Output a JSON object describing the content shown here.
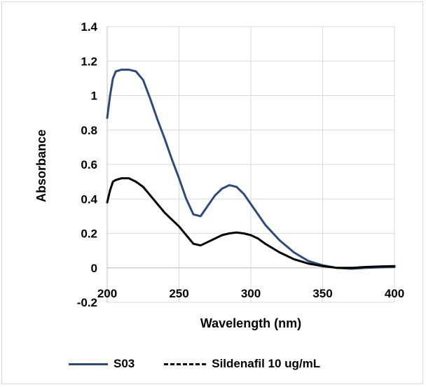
{
  "chart_data": {
    "type": "line",
    "xlabel": "Wavelength (nm)",
    "ylabel": "Absorbance",
    "xlim": [
      200,
      400
    ],
    "ylim": [
      -0.2,
      1.4
    ],
    "x_ticks": [
      "200",
      "250",
      "300",
      "350",
      "400"
    ],
    "y_ticks": [
      "-0.2",
      "0",
      "0.2",
      "0.4",
      "0.6",
      "0.8",
      "1",
      "1.2",
      "1.4"
    ],
    "grid": true,
    "legend_position": "bottom",
    "series": [
      {
        "name": "S03",
        "color": "#2e4a78",
        "style": "solid",
        "x": [
          200,
          202,
          204,
          206,
          210,
          215,
          220,
          225,
          230,
          235,
          240,
          245,
          250,
          255,
          260,
          265,
          270,
          275,
          280,
          285,
          290,
          295,
          300,
          305,
          310,
          320,
          330,
          340,
          350,
          360,
          370,
          380,
          390,
          400
        ],
        "y": [
          0.87,
          1.0,
          1.1,
          1.14,
          1.15,
          1.15,
          1.14,
          1.09,
          0.98,
          0.86,
          0.75,
          0.63,
          0.52,
          0.4,
          0.31,
          0.3,
          0.36,
          0.42,
          0.46,
          0.48,
          0.47,
          0.43,
          0.37,
          0.31,
          0.25,
          0.16,
          0.09,
          0.04,
          0.015,
          0.0,
          -0.005,
          0.0,
          0.003,
          0.005
        ]
      },
      {
        "name": "Sildenafil 10 ug/mL",
        "color": "#000000",
        "style": "solid",
        "x": [
          200,
          202,
          204,
          206,
          210,
          215,
          220,
          225,
          230,
          235,
          240,
          245,
          250,
          255,
          260,
          265,
          270,
          275,
          280,
          285,
          290,
          295,
          300,
          305,
          310,
          320,
          330,
          340,
          350,
          360,
          370,
          380,
          390,
          400
        ],
        "y": [
          0.38,
          0.45,
          0.5,
          0.51,
          0.52,
          0.52,
          0.5,
          0.47,
          0.42,
          0.37,
          0.32,
          0.28,
          0.24,
          0.19,
          0.14,
          0.13,
          0.15,
          0.17,
          0.19,
          0.2,
          0.205,
          0.2,
          0.19,
          0.17,
          0.14,
          0.09,
          0.05,
          0.025,
          0.01,
          0.0,
          0.0,
          0.005,
          0.008,
          0.01
        ]
      }
    ]
  },
  "legend": {
    "entries": [
      "S03",
      "Sildenafil 10 ug/mL"
    ],
    "rendered_label_2": "Sildenafil 10 ug/mL"
  }
}
